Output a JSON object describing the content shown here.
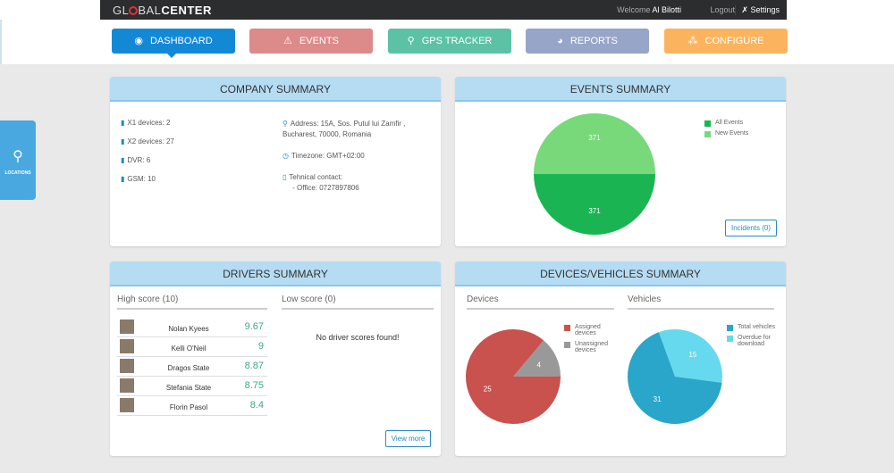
{
  "header": {
    "logo": "GLOBALCENTER",
    "welcome": "Welcome",
    "user": "Al Bilotti",
    "logout": "Logout",
    "settings": "Settings"
  },
  "nav": [
    {
      "label": "DASHBOARD",
      "icon": "dashboard-icon",
      "color": "#1389d6"
    },
    {
      "label": "EVENTS",
      "icon": "warning-icon",
      "color": "#dd8a8a"
    },
    {
      "label": "GPS TRACKER",
      "icon": "map-pin-icon",
      "color": "#5cc2a5"
    },
    {
      "label": "REPORTS",
      "icon": "pie-chart-icon",
      "color": "#97a5c9"
    },
    {
      "label": "CONFIGURE",
      "icon": "network-icon",
      "color": "#fbb45d"
    }
  ],
  "locations_tab": "LOCATIONS",
  "company": {
    "title": "COMPANY SUMMARY",
    "devices": [
      "X1 devices: 2",
      "X2 devices: 27",
      "DVR: 6",
      "GSM: 10"
    ],
    "address": "Address: 15A, Sos. Putul lui Zamfir ,",
    "address2": "Bucharest, 70000, Romania",
    "timezone": "Timezone: GMT+02:00",
    "contact": "Tehnical contact:",
    "office": "- Office: 0727897806"
  },
  "events": {
    "title": "EVENTS SUMMARY",
    "incidents": "Incidents (0)",
    "chart_data": {
      "type": "pie",
      "series": [
        {
          "name": "All Events",
          "value": 371,
          "color": "#1ab552"
        },
        {
          "name": "New Events",
          "value": 371,
          "color": "#77d97a"
        }
      ],
      "legend": "top-right"
    }
  },
  "drivers": {
    "title": "DRIVERS SUMMARY",
    "high": "High score (10)",
    "low": "Low score (0)",
    "empty": "No driver scores found!",
    "view_more": "View more",
    "rows": [
      {
        "name": "Nolan Kyees",
        "score": "9.67"
      },
      {
        "name": "Kelli O'Neil",
        "score": "9"
      },
      {
        "name": "Dragos State",
        "score": "8.87"
      },
      {
        "name": "Stefania State",
        "score": "8.75"
      },
      {
        "name": "Florin Pasol",
        "score": "8.4"
      }
    ]
  },
  "devices": {
    "title": "DEVICES/VEHICLES SUMMARY",
    "devices_label": "Devices",
    "vehicles_label": "Vehicles",
    "chart_data": [
      {
        "type": "pie",
        "series": [
          {
            "name": "Assigned devices",
            "value": 25,
            "color": "#c9514e"
          },
          {
            "name": "Unassigned devices",
            "value": 4,
            "color": "#999999"
          }
        ],
        "legend": "right"
      },
      {
        "type": "pie",
        "series": [
          {
            "name": "Total vehicles",
            "value": 31,
            "color": "#29a6c9"
          },
          {
            "name": "Overdue for download",
            "value": 15,
            "color": "#66d9ee"
          }
        ],
        "legend": "right"
      }
    ]
  }
}
